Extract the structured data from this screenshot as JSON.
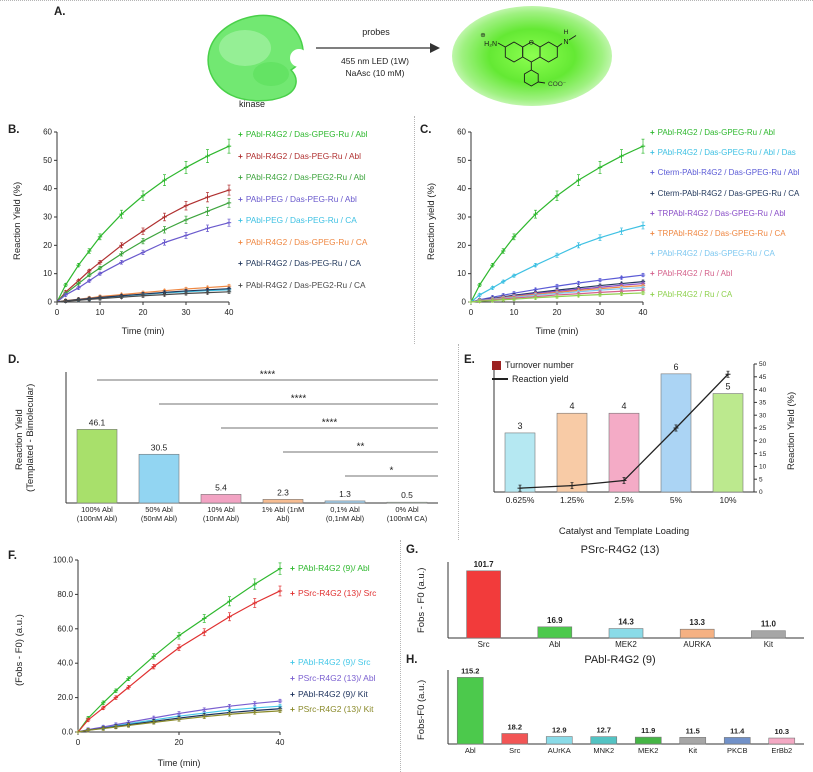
{
  "panel_a": {
    "label": "A.",
    "kinase_label": "kinase",
    "arrow_label_top": "probes",
    "conditions": [
      "455 nm LED (1W)",
      "NaAsc (10 mM)"
    ],
    "structure": {
      "amine": "H₂N",
      "plus": "⊕",
      "oxygen": "O",
      "nitrogen": "N",
      "hydrogen": "H",
      "carboxylate": "COO⁻"
    }
  },
  "chart_data": [
    {
      "id": "panelB",
      "panel_label": "B.",
      "type": "line",
      "xlabel": "Time (min)",
      "ylabel": "Reaction Yield (%)",
      "xlim": [
        0,
        40
      ],
      "ylim": [
        0,
        60
      ],
      "xticks": [
        0,
        10,
        20,
        30,
        40
      ],
      "yticks": [
        0,
        10,
        20,
        30,
        40,
        50,
        60
      ],
      "x": [
        0,
        2,
        5,
        7.5,
        10,
        15,
        20,
        25,
        30,
        35,
        40
      ],
      "series": [
        {
          "name": "PAbl-R4G2 / Das-GPEG-Ru / Abl",
          "color": "#2eb82e",
          "values": [
            0,
            6,
            13,
            18,
            23,
            31,
            37.5,
            43,
            47.5,
            51.5,
            55
          ]
        },
        {
          "name": "PAbl-R4G2 / Das-PEG-Ru / Abl",
          "color": "#b03030",
          "values": [
            0,
            3.5,
            7.5,
            11,
            14,
            20,
            25,
            30,
            34,
            37,
            39.5
          ]
        },
        {
          "name": "PAbl-R4G2 / Das-PEG2-Ru / Abl",
          "color": "#3da43d",
          "values": [
            0,
            3,
            6.5,
            9.5,
            12,
            17,
            21.5,
            25.5,
            29,
            32,
            35
          ]
        },
        {
          "name": "PAbl-PEG / Das-PEG-Ru / Abl",
          "color": "#6a5acd",
          "values": [
            0,
            2.5,
            5,
            7.5,
            10,
            14,
            17.5,
            21,
            23.5,
            26,
            28
          ]
        },
        {
          "name": "PAbl-PEG / Das-PEG-Ru / CA",
          "color": "#3fc1e3",
          "values": [
            0,
            0.4,
            0.8,
            1.1,
            1.5,
            2.1,
            2.7,
            3.2,
            3.6,
            4,
            4.3
          ]
        },
        {
          "name": "PAbl-R4G2 / Das-GPEG-Ru / CA",
          "color": "#ef8843",
          "values": [
            0,
            0.5,
            1,
            1.4,
            1.9,
            2.6,
            3.3,
            4,
            4.6,
            5.1,
            5.6
          ]
        },
        {
          "name": "PAbl-R4G2 / Das-PEG-Ru / CA",
          "color": "#23395d",
          "values": [
            0,
            0.4,
            0.9,
            1.2,
            1.6,
            2.2,
            2.8,
            3.4,
            3.9,
            4.3,
            4.7
          ]
        },
        {
          "name": "PAbl-R4G2 / Das-PEG2-Ru / CA",
          "color": "#4a4a4a",
          "values": [
            0,
            0.3,
            0.6,
            0.9,
            1.2,
            1.7,
            2.2,
            2.6,
            3,
            3.3,
            3.6
          ]
        }
      ]
    },
    {
      "id": "panelC",
      "panel_label": "C.",
      "type": "line",
      "xlabel": "Time (min)",
      "ylabel": "Reaction yield (%)",
      "xlim": [
        0,
        40
      ],
      "ylim": [
        0,
        60
      ],
      "xticks": [
        0,
        10,
        20,
        30,
        40
      ],
      "yticks": [
        0,
        10,
        20,
        30,
        40,
        50,
        60
      ],
      "x": [
        0,
        2,
        5,
        7.5,
        10,
        15,
        20,
        25,
        30,
        35,
        40
      ],
      "series": [
        {
          "name": "PAbl-R4G2 / Das-GPEG-Ru / Abl",
          "color": "#2eb82e",
          "values": [
            0,
            6,
            13,
            18,
            23,
            31,
            37.5,
            43,
            47.5,
            51.5,
            55
          ]
        },
        {
          "name": "PAbl-R4G2 / Das-GPEG-Ru / Abl / Das",
          "color": "#3fc1e3",
          "values": [
            0,
            2.5,
            5,
            7.2,
            9.3,
            13,
            16.5,
            20,
            22.7,
            25,
            27
          ]
        },
        {
          "name": "Cterm-PAbl-R4G2 / Das-GPEG-Ru / Abl",
          "color": "#5b5bd6",
          "values": [
            0,
            0.8,
            1.7,
            2.4,
            3.1,
            4.4,
            5.6,
            6.7,
            7.7,
            8.6,
            9.5
          ]
        },
        {
          "name": "Cterm-PAbl-R4G2 / Das-GPEG-Ru / CA",
          "color": "#23395d",
          "values": [
            0,
            0.6,
            1.3,
            1.8,
            2.4,
            3.3,
            4.2,
            5,
            5.8,
            6.5,
            7.2
          ]
        },
        {
          "name": "TRPAbl-R4G2 / Das-GPEG-Ru / Abl",
          "color": "#8a4fc8",
          "values": [
            0,
            0.6,
            1.1,
            1.6,
            2.1,
            3,
            3.8,
            4.5,
            5.2,
            5.9,
            6.5
          ]
        },
        {
          "name": "TRPAbl-R4G2 / Das-GPEG-Ru / CA",
          "color": "#ef8843",
          "values": [
            0,
            0.5,
            1,
            1.5,
            1.9,
            2.7,
            3.4,
            4.1,
            4.7,
            5.3,
            5.8
          ]
        },
        {
          "name": "PAbl-R4G2 / Das-GPEG-Ru / CA",
          "color": "#7ec8f0",
          "values": [
            0,
            0.5,
            0.9,
            1.3,
            1.7,
            2.4,
            3,
            3.6,
            4.2,
            4.7,
            5.1
          ]
        },
        {
          "name": "PAbl-R4G2 / Ru / Abl",
          "color": "#d4608a",
          "values": [
            0,
            0.4,
            0.7,
            1.1,
            1.4,
            1.9,
            2.5,
            2.9,
            3.4,
            3.8,
            4.2
          ]
        },
        {
          "name": "PAbl-R4G2 / Ru / CA",
          "color": "#8fd14f",
          "values": [
            0,
            0.3,
            0.5,
            0.8,
            1,
            1.5,
            1.9,
            2.3,
            2.6,
            2.9,
            3.2
          ]
        }
      ]
    },
    {
      "id": "panelD",
      "panel_label": "D.",
      "type": "bar",
      "ylabel_lines": [
        "Reaction Yield",
        "(Templated - Bimolecular)"
      ],
      "categories": [
        [
          "100% Abl",
          "(100nM Abl)"
        ],
        [
          "50% Abl",
          "(50nM Abl)"
        ],
        [
          "10% Abl",
          "(10nM Abl)"
        ],
        [
          "1% Abl (1nM",
          "Abl)"
        ],
        [
          "0,1% Abl",
          "(0,1nM Abl)"
        ],
        [
          "0% Abl",
          "(100nM CA)"
        ]
      ],
      "values": [
        46.1,
        30.5,
        5.4,
        2.3,
        1.3,
        0.5
      ],
      "colors": [
        "#a8e06b",
        "#92d5f2",
        "#f2a3c3",
        "#f7bd92",
        "#a6d4f2",
        "#b7c9b7"
      ],
      "ylim": [
        0,
        82
      ],
      "significance": [
        {
          "from": 0,
          "to": 5,
          "label": "****"
        },
        {
          "from": 1,
          "to": 5,
          "label": "****"
        },
        {
          "from": 2,
          "to": 5,
          "label": "****"
        },
        {
          "from": 3,
          "to": 5,
          "label": "**"
        },
        {
          "from": 4,
          "to": 5,
          "label": "*"
        }
      ]
    },
    {
      "id": "panelE",
      "panel_label": "E.",
      "type": "combo",
      "legend": [
        {
          "label": "Turnover number",
          "color": "#9c2222",
          "marker": "square"
        },
        {
          "label": "Reaction yield",
          "color": "#222222",
          "marker": "line"
        }
      ],
      "categories": [
        "0.625%",
        "1.25%",
        "2.5%",
        "5%",
        "10%"
      ],
      "bar_values": [
        3,
        4,
        4,
        6,
        5
      ],
      "bar_colors": [
        "#b5e8f2",
        "#f8cba6",
        "#f4abc6",
        "#abd4f4",
        "#bce98e"
      ],
      "bar_ylim": [
        0,
        6.5
      ],
      "line_values": [
        1.5,
        2.5,
        4.5,
        25,
        46
      ],
      "line_color": "#222222",
      "right_ylim": [
        0,
        50
      ],
      "right_yticks": [
        0,
        5,
        10,
        15,
        20,
        25,
        30,
        35,
        40,
        45,
        50
      ],
      "right_ylabel": "Reaction Yield (%)",
      "xlabel": "Catalyst and Template Loading"
    },
    {
      "id": "panelF",
      "panel_label": "F.",
      "type": "line",
      "xlabel": "Time (min)",
      "ylabel": "(Fobs - F0) (a.u.)",
      "xlim": [
        0,
        40
      ],
      "ylim": [
        0,
        100
      ],
      "xticks": [
        0,
        20,
        40
      ],
      "yticks": [
        "0.0",
        "20.0",
        "40.0",
        "60.0",
        "80.0",
        "100.0"
      ],
      "x": [
        0,
        2,
        5,
        7.5,
        10,
        15,
        20,
        25,
        30,
        35,
        40
      ],
      "series": [
        {
          "name": "PAbl-R4G2 (9)/ Abl",
          "color": "#2eb82e",
          "values": [
            0,
            8,
            17,
            24,
            31,
            44,
            56,
            66,
            76,
            86,
            95
          ]
        },
        {
          "name": "PSrc-R4G2 (13)/ Src",
          "color": "#e03131",
          "values": [
            0,
            7,
            14,
            20,
            26,
            38,
            49,
            58,
            67,
            75,
            82
          ]
        },
        {
          "name": "PAbl-R4G2 (9)/ Src",
          "color": "#45c8e8",
          "values": [
            0,
            1.2,
            2.5,
            3.7,
            4.8,
            7,
            9.2,
            11,
            12.8,
            14,
            15
          ]
        },
        {
          "name": "PSrc-R4G2 (13)/ Abl",
          "color": "#7a5fd0",
          "values": [
            0,
            1.4,
            2.9,
            4.3,
            5.6,
            8.2,
            10.8,
            13,
            15,
            16.6,
            18
          ]
        },
        {
          "name": "PAbl-R4G2 (9)/ Kit",
          "color": "#1a2f5a",
          "values": [
            0,
            1.1,
            2.2,
            3.2,
            4.2,
            6.2,
            8.1,
            9.8,
            11.3,
            12.5,
            13.5
          ]
        },
        {
          "name": "PSrc-R4G2 (13)/ Kit",
          "color": "#8a8a2a",
          "values": [
            0,
            1,
            2,
            2.9,
            3.8,
            5.6,
            7.3,
            8.9,
            10.3,
            11.4,
            12.3
          ]
        }
      ]
    },
    {
      "id": "panelG",
      "panel_label": "G.",
      "type": "bar",
      "title": "PSrc-R4G2 (13)",
      "ylabel": "Fobs - F0 (a.u.)",
      "categories": [
        "Src",
        "Abl",
        "MEK2",
        "AURKA",
        "Kit"
      ],
      "values": [
        101.7,
        16.9,
        14.3,
        13.3,
        11.0
      ],
      "colors": [
        "#f23b3b",
        "#4cc94c",
        "#8adbe8",
        "#f5b183",
        "#a6a6a6"
      ],
      "ylim": [
        0,
        115
      ]
    },
    {
      "id": "panelH",
      "panel_label": "H.",
      "type": "bar",
      "title": "PAbl-R4G2 (9)",
      "ylabel": "Fobs-F0 (a.u.)",
      "categories": [
        "Abl",
        "Src",
        "AUrKA",
        "MNK2",
        "MEK2",
        "Kit",
        "PKCB",
        "ErBb2"
      ],
      "values": [
        115.2,
        18.2,
        12.9,
        12.7,
        11.9,
        11.5,
        11.4,
        10.3
      ],
      "colors": [
        "#4cc94c",
        "#f25555",
        "#8adbe8",
        "#53c3c3",
        "#45b545",
        "#a6a6a6",
        "#7191c9",
        "#f4a9c4"
      ],
      "ylim": [
        0,
        128
      ]
    }
  ]
}
